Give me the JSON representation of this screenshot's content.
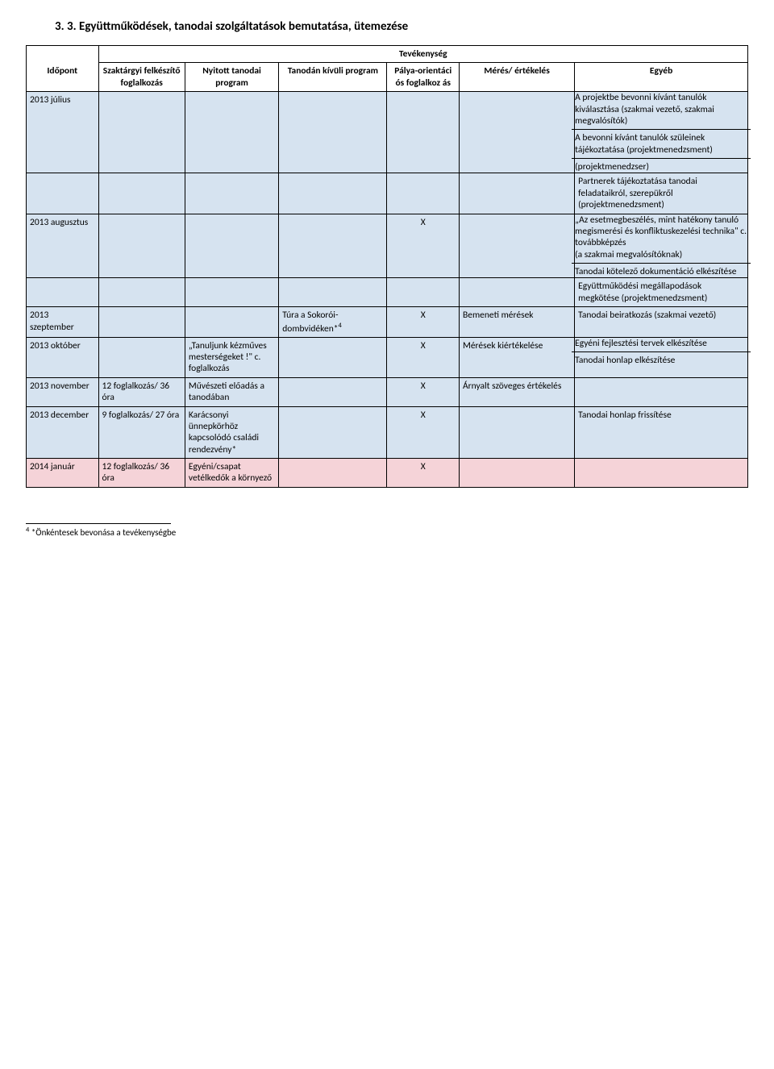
{
  "section_title": "3. 3. Együttműködések, tanodai szolgáltatások bemutatása, ütemezése",
  "header": {
    "activity": "Tevékenység",
    "timepoint": "Időpont",
    "subject_prep": "Szaktárgyi felkészítő foglalkozás",
    "open_program": "Nyitott tanodai program",
    "outside_program": "Tanodán kívüli program",
    "career": "Pálya-orientáci ós foglalkoz ás",
    "measurement": "Mérés/ értékelés",
    "other": "Egyéb"
  },
  "rows": [
    {
      "time": "2013 július",
      "szak": "",
      "nyit": "",
      "kivul": "",
      "palya": "",
      "meres": "",
      "egyeb_multi": [
        "A projektbe bevonni kívánt tanulók kiválasztása (szakmai vezető, szakmai megvalósítók)",
        "A bevonni kívánt tanulók szüleinek tájékoztatása (projektmenedzsment)",
        " (projektmenedzser)"
      ],
      "bg": "bg-blue"
    },
    {
      "time": "",
      "szak": "",
      "nyit": "",
      "kivul": "",
      "palya": "",
      "meres": "",
      "egyeb": "Partnerek tájékoztatása tanodai feladataikról, szerepükről (projektmenedzsment)",
      "bg": "bg-blue"
    },
    {
      "time": "2013 augusztus",
      "szak": "",
      "nyit": "",
      "kivul": "",
      "palya": "X",
      "meres": "",
      "egyeb_multi": [
        "„Az esetmegbeszélés, mint hatékony tanuló megismerési és konfliktuskezelési technika\" c. továbbképzés\n (a szakmai megvalósítóknak)",
        "Tanodai kötelező dokumentáció elkészítése"
      ],
      "bg": "bg-blue"
    },
    {
      "time": "",
      "szak": "",
      "nyit": "",
      "kivul": "",
      "palya": "",
      "meres": "",
      "egyeb": "Együttműködési megállapodások megkötése (projektmenedzsment)",
      "bg": "bg-blue"
    },
    {
      "time": "2013 szeptember",
      "szak": "",
      "nyit": "",
      "kivul_html": "Túra a Sokorói-dombvidéken*<sup>4</sup>",
      "palya": "X",
      "meres": "Bemeneti mérések",
      "egyeb": "Tanodai beiratkozás (szakmai vezető)",
      "bg": "bg-blue"
    },
    {
      "time": "2013 október",
      "szak": "",
      "nyit": "„Tanuljunk kézműves mesterségeket !\" c. foglalkozás",
      "kivul": "",
      "palya": "X",
      "meres": "Mérések kiértékelése",
      "egyeb_multi": [
        "Egyéni fejlesztési tervek elkészítése",
        "Tanodai honlap elkészítése"
      ],
      "bg": "bg-blue"
    },
    {
      "time": "2013 november",
      "szak": "12 foglalkozás/ 36 óra",
      "nyit": "Művészeti előadás a tanodában",
      "kivul": "",
      "palya": "X",
      "meres": "Árnyalt szöveges értékelés",
      "egyeb": "",
      "bg": "bg-blue"
    },
    {
      "time": "2013 december",
      "szak": "9 foglalkozás/ 27 óra",
      "nyit": "Karácsonyi ünnepkörhöz kapcsolódó családi rendezvény*",
      "kivul": "",
      "palya": "X",
      "meres": "",
      "egyeb": "Tanodai honlap frissítése",
      "bg": "bg-blue"
    },
    {
      "time": "2014 január",
      "szak": "12 foglalkozás/ 36 óra",
      "nyit": "Egyéni/csapat vetélkedők a környező",
      "kivul": "",
      "palya": "X",
      "meres": "",
      "egyeb": "",
      "bg": "bg-pink"
    }
  ],
  "footnote": "*Önkéntesek bevonása a tevékenységbe",
  "footnote_num": "4"
}
